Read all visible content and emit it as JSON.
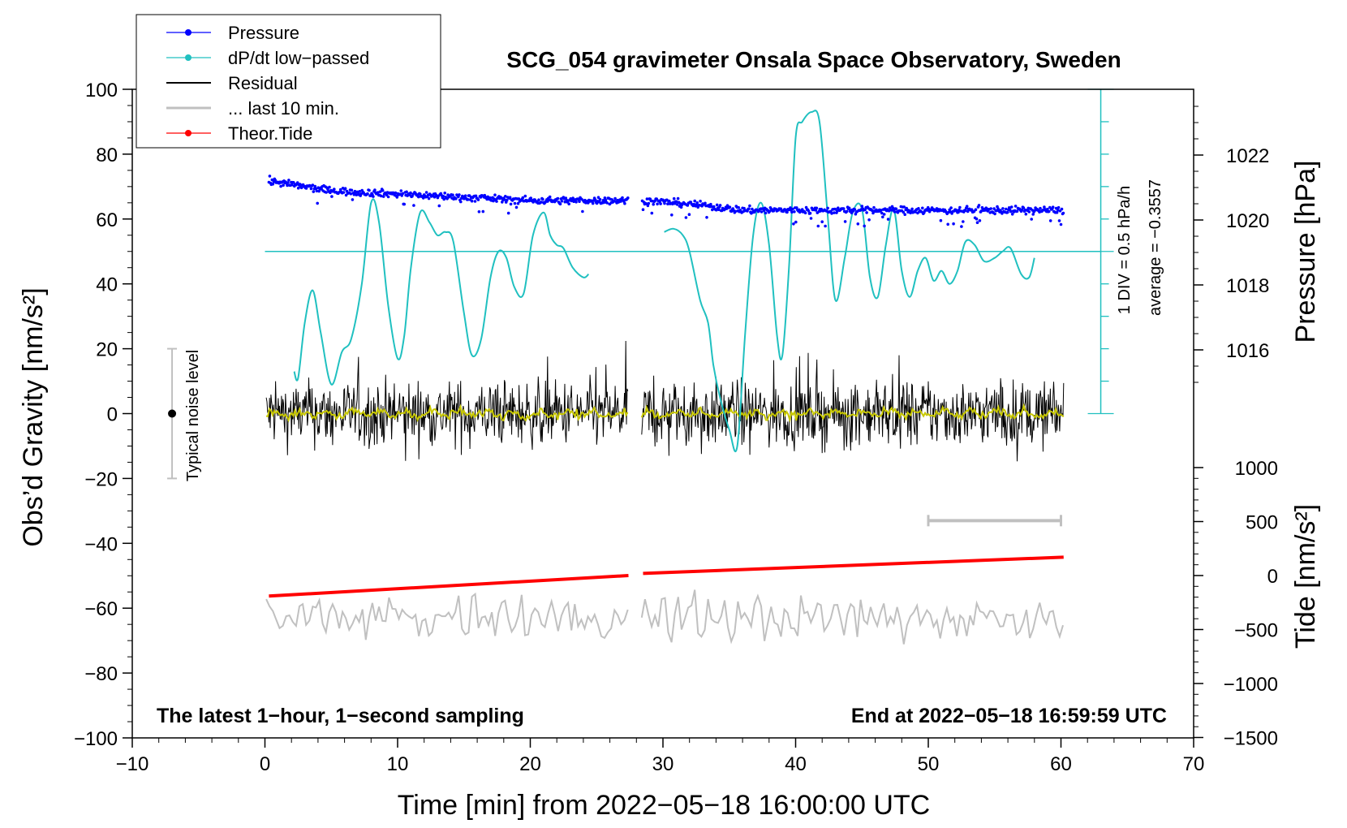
{
  "chart_data": {
    "type": "line",
    "title": "SCG_054 gravimeter Onsala Space Observatory, Sweden",
    "xlabel": "Time [min] from 2022−05−18 16:00:00 UTC",
    "ylabel_left": "Obs’d Gravity [nm/s²]",
    "ylabel_right_top": "Pressure [hPa]",
    "ylabel_right_bottom": "Tide [nm/s²]",
    "xlim": [
      -10,
      70
    ],
    "ylim_left": [
      -100,
      100
    ],
    "ylim_pressure": [
      1014,
      1024
    ],
    "ylim_tide": [
      -1500,
      1500
    ],
    "x_ticks": [
      -10,
      0,
      10,
      20,
      30,
      40,
      50,
      60,
      70
    ],
    "x_tick_labels": [
      "−10",
      "0",
      "10",
      "20",
      "30",
      "40",
      "50",
      "60",
      "70"
    ],
    "y_left_ticks": [
      -100,
      -80,
      -60,
      -40,
      -20,
      0,
      20,
      40,
      60,
      80,
      100
    ],
    "y_left_tick_labels": [
      "−100",
      "−80",
      "−60",
      "−40",
      "−20",
      "0",
      "20",
      "40",
      "60",
      "80",
      "100"
    ],
    "y_pressure_ticks": [
      1016,
      1018,
      1020,
      1022
    ],
    "y_pressure_tick_labels": [
      "1016",
      "1018",
      "1020",
      "1022"
    ],
    "y_tide_ticks": [
      -1500,
      -1000,
      -500,
      0,
      500,
      1000
    ],
    "y_tide_tick_labels": [
      "−1500",
      "−1000",
      "−500",
      "0",
      "500",
      "1000"
    ],
    "legend": [
      {
        "label": "Pressure",
        "color": "#0000ff",
        "marker": true
      },
      {
        "label": "dP/dt low−passed",
        "color": "#20c0c0",
        "marker": true
      },
      {
        "label": "Residual",
        "color": "#000000",
        "marker": false
      },
      {
        "label": "... last 10 min.",
        "color": "#c0c0c0",
        "marker": false
      },
      {
        "label": "Theor.Tide",
        "color": "#ff0000",
        "marker": true
      }
    ],
    "annotations": {
      "bottom_left": "The latest 1−hour, 1−second sampling",
      "bottom_right": "End at 2022−05−18 16:59:59 UTC",
      "noise_label": "Typical noise level",
      "div_label": "1 DIV = 0.5 hPa/h",
      "average_label": "average = −0.3557"
    },
    "noise_bar": {
      "x": -7,
      "y": 0,
      "low": -20,
      "high": 20
    },
    "last10_bar": {
      "x_start": 50,
      "x_end": 60,
      "y": -33
    },
    "dpdt_zero_line": 50,
    "dpdt_scale": {
      "x": 63,
      "y_low": 0,
      "y_high": 100
    },
    "segments": [
      [
        0.1,
        27.4
      ],
      [
        28.4,
        60.2
      ]
    ],
    "pressure": {
      "x": [
        0.3,
        5,
        10,
        15,
        20,
        27.3,
        28.5,
        32,
        36,
        40,
        45,
        50,
        55,
        60.2
      ],
      "y": [
        1021.2,
        1020.9,
        1020.8,
        1020.7,
        1020.6,
        1020.6,
        1020.6,
        1020.5,
        1020.3,
        1020.3,
        1020.3,
        1020.3,
        1020.3,
        1020.3
      ]
    },
    "dpdt": {
      "x": [
        2.2,
        2.5,
        3,
        3.6,
        4.2,
        5,
        5.8,
        6.5,
        7.3,
        8,
        8.6,
        9.3,
        10,
        10.5,
        11,
        11.7,
        12.4,
        13,
        13.6,
        14.2,
        15,
        15.6,
        16.3,
        17,
        17.6,
        18.2,
        18.8,
        19.5,
        20.2,
        21,
        21.5,
        22,
        22.5,
        23.2,
        24,
        24.4,
        30.1,
        30.8,
        31.5,
        32,
        32.8,
        33.4,
        33.8,
        34.3,
        35,
        35.6,
        36.2,
        36.8,
        37.4,
        38,
        38.6,
        39,
        39.5,
        40,
        40.5,
        41.2,
        41.8,
        42.4,
        43,
        43.7,
        44.3,
        45,
        45.6,
        46.2,
        46.8,
        47.4,
        48,
        48.6,
        49.2,
        49.8,
        50.4,
        51,
        51.6,
        52.2,
        52.8,
        53.5,
        54.2,
        55,
        55.6,
        56.2,
        57,
        57.6,
        58
      ],
      "y": [
        13,
        11,
        28,
        38,
        25,
        9,
        19,
        23,
        40,
        65,
        59,
        33,
        17,
        24,
        45,
        62,
        59,
        55,
        56,
        53,
        31,
        18,
        23,
        42,
        50,
        48,
        39,
        37,
        55,
        62,
        55,
        52,
        51,
        45,
        42,
        43,
        56,
        57,
        55,
        50,
        35,
        28,
        15,
        5,
        -5,
        -10,
        25,
        55,
        65,
        52,
        24,
        18,
        45,
        85,
        90,
        93,
        90,
        62,
        35,
        48,
        62,
        63,
        42,
        36,
        52,
        63,
        44,
        36,
        44,
        48,
        41,
        44,
        40,
        44,
        53,
        52,
        47,
        48,
        50,
        51,
        43,
        42,
        48
      ]
    },
    "residual_noise_amplitude": 7,
    "tide": {
      "x": [
        0.3,
        27.4,
        28.5,
        60.2
      ],
      "y": [
        -190,
        0,
        20,
        170
      ]
    }
  }
}
